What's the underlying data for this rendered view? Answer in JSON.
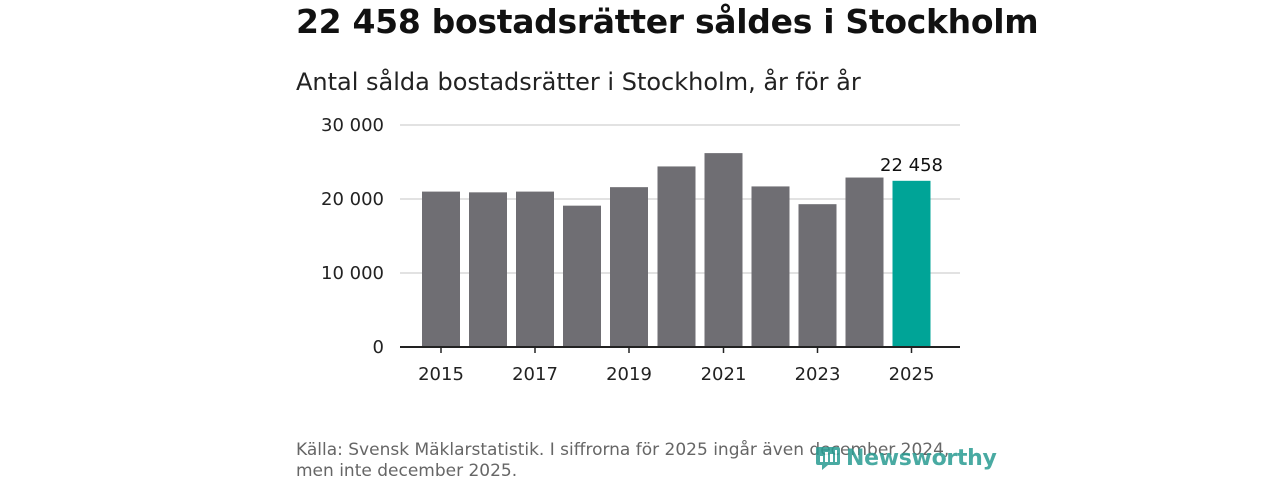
{
  "header": {
    "title": "22 458 bostadsrätter såldes i Stockholm",
    "subtitle": "Antal sålda bostadsrätter i Stockholm, år för år"
  },
  "footer": {
    "source_line1": "Källa: Svensk Mäklarstatistik. I siffrorna för 2025 ingår även december 2024,",
    "source_line2": "men inte december 2025.",
    "logo_text": "Newsworthy"
  },
  "colors": {
    "bar": "#6f6e73",
    "highlight": "#00a497",
    "grid": "#d9d9d9",
    "axis": "#222222"
  },
  "chart_data": {
    "type": "bar",
    "title": "Antal sålda bostadsrätter i Stockholm, år för år",
    "xlabel": "",
    "ylabel": "",
    "categories": [
      "2015",
      "2016",
      "2017",
      "2018",
      "2019",
      "2020",
      "2021",
      "2022",
      "2023",
      "2024",
      "2025"
    ],
    "values": [
      21000,
      20900,
      21000,
      19100,
      21600,
      24400,
      26200,
      21700,
      19300,
      22900,
      22458
    ],
    "ylim": [
      0,
      30000
    ],
    "yticks": [
      0,
      10000,
      20000,
      30000
    ],
    "ytick_labels": [
      "0",
      "10 000",
      "20 000",
      "30 000"
    ],
    "xtick_labels": [
      "2015",
      "2017",
      "2019",
      "2021",
      "2023",
      "2025"
    ],
    "highlight_index": 10,
    "data_labels": [
      {
        "index": 10,
        "text": "22 458"
      }
    ],
    "grid": true,
    "legend": "none"
  }
}
